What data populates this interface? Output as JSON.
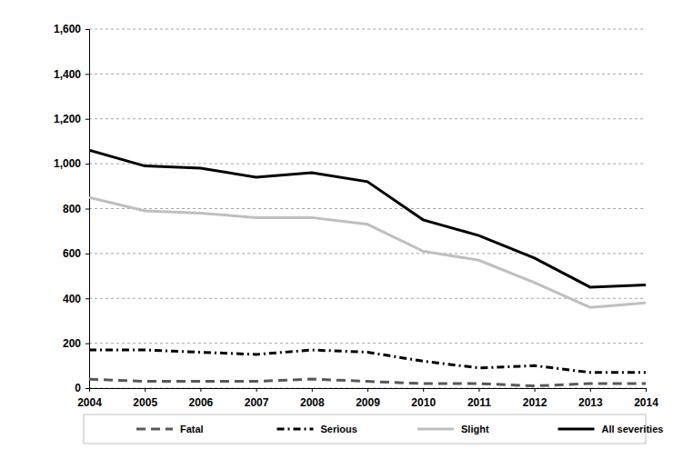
{
  "chart_data": {
    "type": "line",
    "categories": [
      "2004",
      "2005",
      "2006",
      "2007",
      "2008",
      "2009",
      "2010",
      "2011",
      "2012",
      "2013",
      "2014"
    ],
    "series": [
      {
        "name": "Fatal",
        "color": "#595959",
        "line_style": "dashed",
        "values": [
          40,
          30,
          30,
          30,
          40,
          30,
          20,
          20,
          10,
          20,
          20
        ]
      },
      {
        "name": "Serious",
        "color": "#000000",
        "line_style": "dashdot",
        "values": [
          170,
          170,
          160,
          150,
          170,
          160,
          120,
          90,
          100,
          70,
          70
        ]
      },
      {
        "name": "Slight",
        "color": "#bfbfbf",
        "line_style": "solid",
        "values": [
          850,
          790,
          780,
          760,
          760,
          730,
          610,
          570,
          470,
          360,
          380
        ]
      },
      {
        "name": "All severities",
        "color": "#000000",
        "line_style": "solid",
        "values": [
          1060,
          990,
          980,
          940,
          960,
          920,
          750,
          680,
          580,
          450,
          460
        ]
      }
    ],
    "ylim": [
      0,
      1600
    ],
    "yticks": [
      0,
      200,
      400,
      600,
      800,
      {
        "value": 1000,
        "label": "1,000"
      },
      {
        "value": 1200,
        "label": "1,200"
      },
      {
        "value": 1400,
        "label": "1,400"
      },
      {
        "value": 1600,
        "label": "1,600"
      }
    ],
    "grid": true,
    "legend": "bottom"
  }
}
